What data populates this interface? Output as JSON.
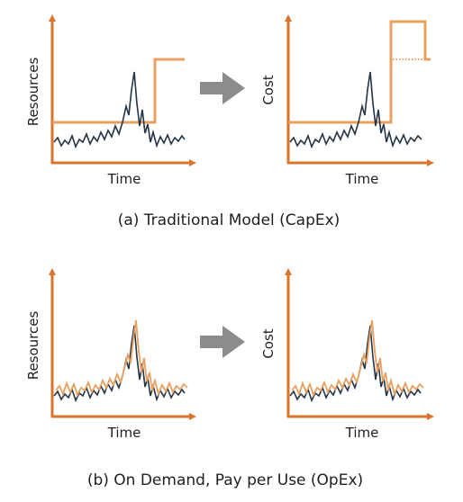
{
  "colors": {
    "axis": "#d9742b",
    "capacity": "#e8a060",
    "demand": "#253545",
    "arrow": "#8c8c8c",
    "text": "#1f1f1f"
  },
  "panels": {
    "capex_resources": {
      "x_label": "Time",
      "y_label": "Resources"
    },
    "capex_cost": {
      "x_label": "Time",
      "y_label": "Cost"
    },
    "opex_resources": {
      "x_label": "Time",
      "y_label": "Resources"
    },
    "opex_cost": {
      "x_label": "Time",
      "y_label": "Cost"
    }
  },
  "captions": {
    "capex": "(a) Traditional Model (CapEx)",
    "opex": "(b) On Demand, Pay per Use (OpEx)"
  }
}
